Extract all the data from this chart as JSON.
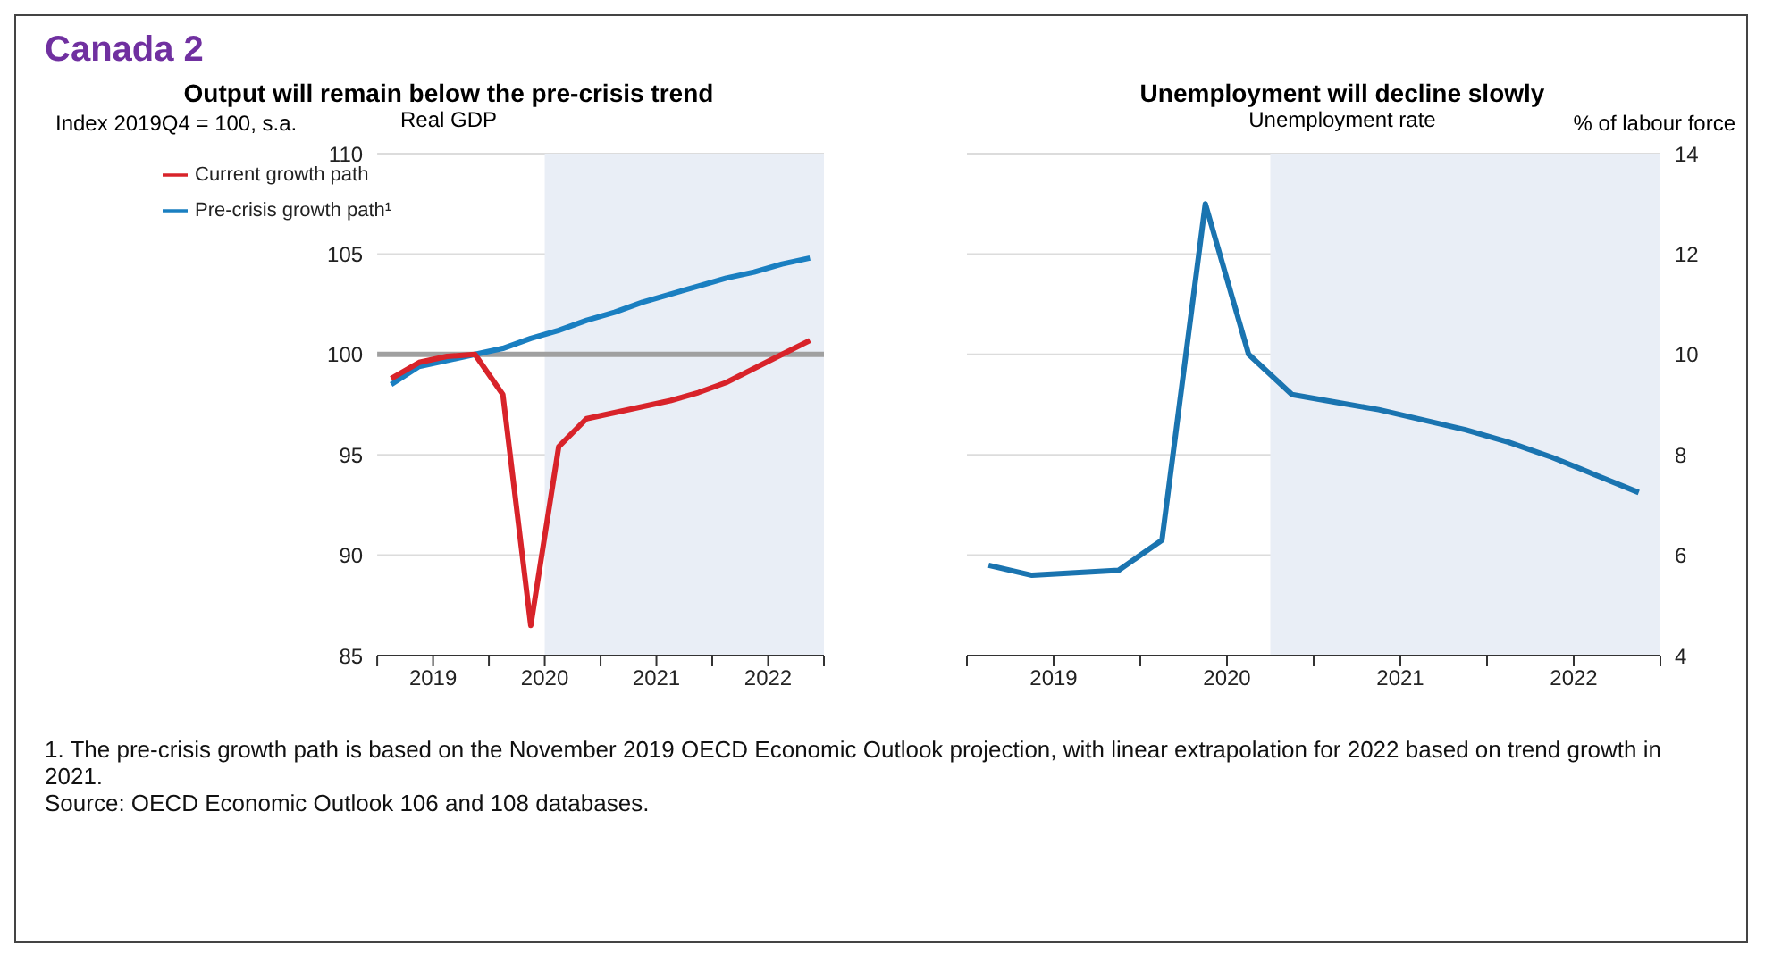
{
  "chart_data": [
    {
      "type": "line",
      "title": "Output will remain below the pre-crisis trend",
      "subtitle": "Real GDP",
      "ylabel": "Index 2019Q4 = 100, s.a.",
      "annotations": [
        "Canada 2"
      ],
      "x": [
        2019.125,
        2019.375,
        2019.625,
        2019.875,
        2020.125,
        2020.375,
        2020.625,
        2020.875,
        2021.125,
        2021.375,
        2021.625,
        2021.875,
        2022.125,
        2022.375,
        2022.625,
        2022.875
      ],
      "series": [
        {
          "name": "Pre-crisis growth path¹",
          "color": "#1a7fc1",
          "values": [
            98.5,
            99.4,
            99.7,
            100.0,
            100.3,
            100.8,
            101.2,
            101.7,
            102.1,
            102.6,
            103.0,
            103.4,
            103.8,
            104.1,
            104.5,
            104.8
          ]
        },
        {
          "name": "Current growth path",
          "color": "#d8232a",
          "values": [
            98.8,
            99.6,
            99.9,
            100.0,
            98.0,
            86.5,
            95.4,
            96.8,
            97.1,
            97.4,
            97.7,
            98.1,
            98.6,
            99.3,
            100.0,
            100.7
          ]
        }
      ],
      "xlim": [
        2019,
        2023
      ],
      "xticks": [
        {
          "value": 2019,
          "label": null
        },
        {
          "value": 2019.5,
          "label": "2019"
        },
        {
          "value": 2020,
          "label": null
        },
        {
          "value": 2020.5,
          "label": "2020"
        },
        {
          "value": 2021,
          "label": null
        },
        {
          "value": 2021.5,
          "label": "2021"
        },
        {
          "value": 2022,
          "label": null
        },
        {
          "value": 2022.5,
          "label": "2022"
        },
        {
          "value": 2023,
          "label": null
        }
      ],
      "ylim": [
        85,
        110
      ],
      "yticks": [
        85,
        90,
        95,
        100,
        105,
        110
      ],
      "grid": "y",
      "legend": "top left",
      "ref_lines": [
        {
          "axis": "y",
          "value": 100,
          "color": "#a0a0a0"
        }
      ],
      "bands": [
        {
          "axis": "x",
          "from": 2020.5,
          "to": 2023,
          "color": "#e9eef6"
        }
      ]
    },
    {
      "type": "line",
      "title": "Unemployment will decline slowly",
      "subtitle": "Unemployment rate",
      "ylabel": "% of labour force",
      "annotations": [
        "1. The pre-crisis growth path is based on the November 2019 OECD Economic Outlook projection, with linear extrapolation for 2022 based on trend growth in 2021.",
        "Source: OECD Economic Outlook 106 and 108 databases."
      ],
      "x": [
        2019.125,
        2019.375,
        2019.625,
        2019.875,
        2020.125,
        2020.375,
        2020.625,
        2020.875,
        2021.125,
        2021.375,
        2021.625,
        2021.875,
        2022.125,
        2022.375,
        2022.625,
        2022.875
      ],
      "series": [
        {
          "color": "#1a74b0",
          "values": [
            5.8,
            5.6,
            5.65,
            5.7,
            6.3,
            13.0,
            10.0,
            9.2,
            9.05,
            8.9,
            8.7,
            8.5,
            8.25,
            7.95,
            7.6,
            7.25
          ]
        }
      ],
      "xlim": [
        2019,
        2023
      ],
      "xticks": [
        {
          "value": 2019,
          "label": null
        },
        {
          "value": 2019.5,
          "label": "2019"
        },
        {
          "value": 2020,
          "label": null
        },
        {
          "value": 2020.5,
          "label": "2020"
        },
        {
          "value": 2021,
          "label": null
        },
        {
          "value": 2021.5,
          "label": "2021"
        },
        {
          "value": 2022,
          "label": null
        },
        {
          "value": 2022.5,
          "label": "2022"
        },
        {
          "value": 2023,
          "label": null
        }
      ],
      "ylim": [
        4,
        14
      ],
      "yticks": [
        4,
        6,
        8,
        10,
        12,
        14
      ],
      "grid": "y",
      "legend": false,
      "bands": [
        {
          "axis": "x",
          "from": 2020.75,
          "to": 2023,
          "color": "#e9eef6"
        }
      ]
    }
  ]
}
